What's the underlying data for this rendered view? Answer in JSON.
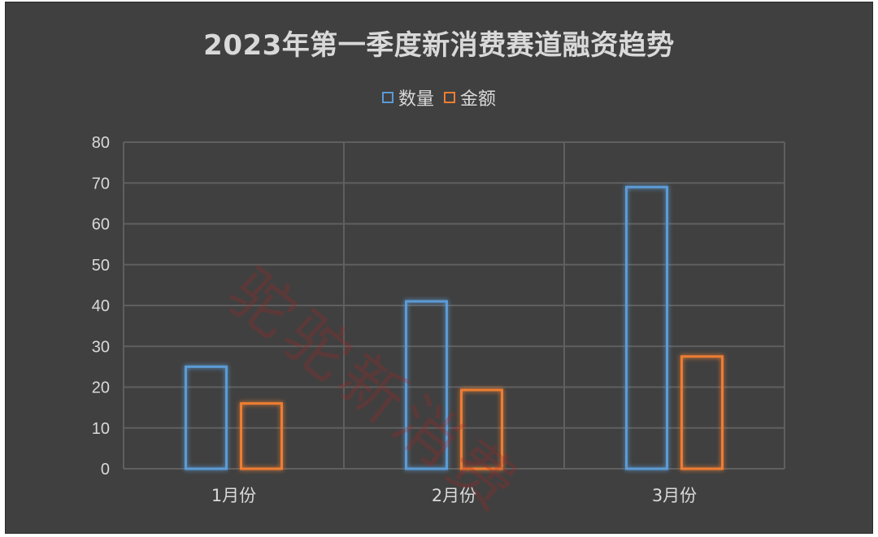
{
  "chart_data": {
    "type": "bar",
    "title": "2023年第一季度新消费赛道融资趋势",
    "categories": [
      "1月份",
      "2月份",
      "3月份"
    ],
    "series": [
      {
        "name": "数量",
        "values": [
          25,
          41,
          69
        ],
        "color": "#5b9bd5"
      },
      {
        "name": "金额",
        "values": [
          16,
          19.3,
          27.5
        ],
        "color": "#ed7d31"
      }
    ],
    "xlabel": "",
    "ylabel": "",
    "ylim": [
      0,
      80
    ],
    "yticks": [
      0,
      10,
      20,
      30,
      40,
      50,
      60,
      70,
      80
    ],
    "grid": true,
    "legend_position": "top",
    "background": "#404040",
    "text_color": "#d9d9d9"
  },
  "watermark": "驼驼新消费"
}
